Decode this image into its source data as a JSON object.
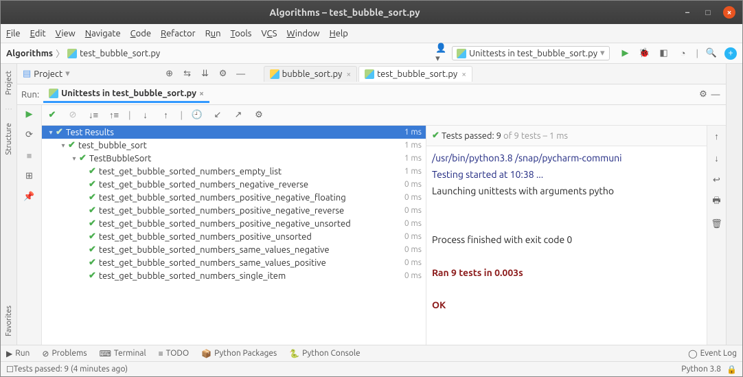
{
  "title": "Algorithms – test_bubble_sort.py",
  "menu": [
    "File",
    "Edit",
    "View",
    "Navigate",
    "Code",
    "Refactor",
    "Run",
    "Tools",
    "VCS",
    "Window",
    "Help"
  ],
  "breadcrumb": {
    "project": "Algorithms",
    "file": "test_bubble_sort.py"
  },
  "runconfig": "Unittests in test_bubble_sort.py",
  "project_tool": {
    "label": "Project"
  },
  "editor_tabs": [
    {
      "name": "bubble_sort.py",
      "active": false
    },
    {
      "name": "test_bubble_sort.py",
      "active": true
    }
  ],
  "run_tab": {
    "label": "Run:",
    "name": "Unittests in test_bubble_sort.py"
  },
  "tests_summary": {
    "prefix": "Tests passed:",
    "passed": "9",
    "of": "of 9 tests – 1 ms"
  },
  "tree": {
    "root": {
      "name": "Test Results",
      "time": "1 ms"
    },
    "module": {
      "name": "test_bubble_sort",
      "time": "1 ms"
    },
    "class": {
      "name": "TestBubbleSort",
      "time": "1 ms"
    },
    "tests": [
      {
        "name": "test_get_bubble_sorted_numbers_empty_list",
        "time": "1 ms"
      },
      {
        "name": "test_get_bubble_sorted_numbers_negative_reverse",
        "time": "0 ms"
      },
      {
        "name": "test_get_bubble_sorted_numbers_positive_negative_floating",
        "time": "0 ms"
      },
      {
        "name": "test_get_bubble_sorted_numbers_positive_negative_reverse",
        "time": "0 ms"
      },
      {
        "name": "test_get_bubble_sorted_numbers_positive_negative_unsorted",
        "time": "0 ms"
      },
      {
        "name": "test_get_bubble_sorted_numbers_positive_unsorted",
        "time": "0 ms"
      },
      {
        "name": "test_get_bubble_sorted_numbers_same_values_negative",
        "time": "0 ms"
      },
      {
        "name": "test_get_bubble_sorted_numbers_same_values_positive",
        "time": "0 ms"
      },
      {
        "name": "test_get_bubble_sorted_numbers_single_item",
        "time": "0 ms"
      }
    ]
  },
  "console": {
    "l1": "/usr/bin/python3.8 /snap/pycharm-communi",
    "l2": "Testing started at 10:38 ...",
    "l3": "Launching unittests with arguments pytho",
    "l4": "Process finished with exit code 0",
    "l5": "Ran 9 tests in 0.003s",
    "l6": "OK"
  },
  "bottom_tools": [
    "Run",
    "Problems",
    "Terminal",
    "TODO",
    "Python Packages",
    "Python Console"
  ],
  "event_log": "Event Log",
  "status": {
    "left": "Tests passed: 9 (4 minutes ago)",
    "right": "Python 3.8"
  },
  "sidebar_left": [
    "Project",
    "Structure",
    "Favorites"
  ],
  "colors": {
    "selection": "#3a7bd5",
    "pass": "#4caf50",
    "titlebar": "#3c3c3c",
    "close_btn": "#e95420"
  }
}
